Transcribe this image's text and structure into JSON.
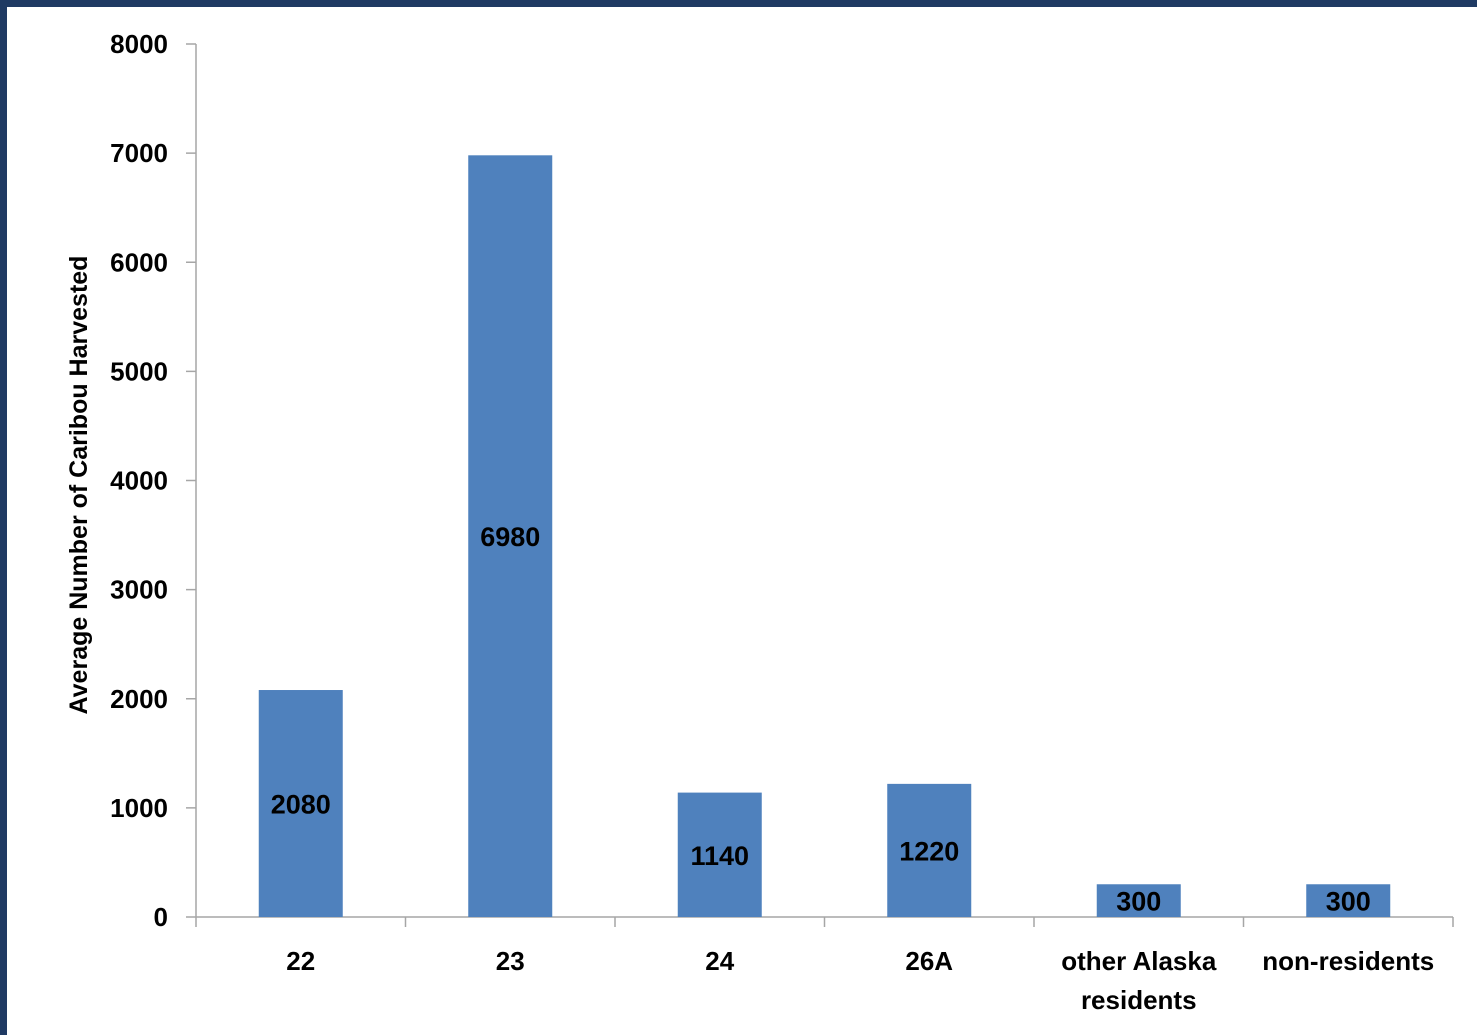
{
  "chart_data": {
    "type": "bar",
    "categories": [
      "22",
      "23",
      "24",
      "26A",
      "other Alaska residents",
      "non-residents"
    ],
    "category_lines": [
      [
        "22"
      ],
      [
        "23"
      ],
      [
        "24"
      ],
      [
        "26A"
      ],
      [
        "other Alaska",
        "residents"
      ],
      [
        "non-residents"
      ]
    ],
    "values": [
      2080,
      6980,
      1140,
      1220,
      300,
      300
    ],
    "title": "",
    "xlabel": "",
    "ylabel": "Average Number of Caribou Harvested",
    "ylim": [
      0,
      8000
    ],
    "yticks": [
      0,
      1000,
      2000,
      3000,
      4000,
      5000,
      6000,
      7000,
      8000
    ],
    "grid": false,
    "legend": "none",
    "data_labels": true,
    "colors": {
      "bar": "#4f81bd",
      "axis": "#a6a6a6",
      "frame": "#1f3a63"
    }
  }
}
